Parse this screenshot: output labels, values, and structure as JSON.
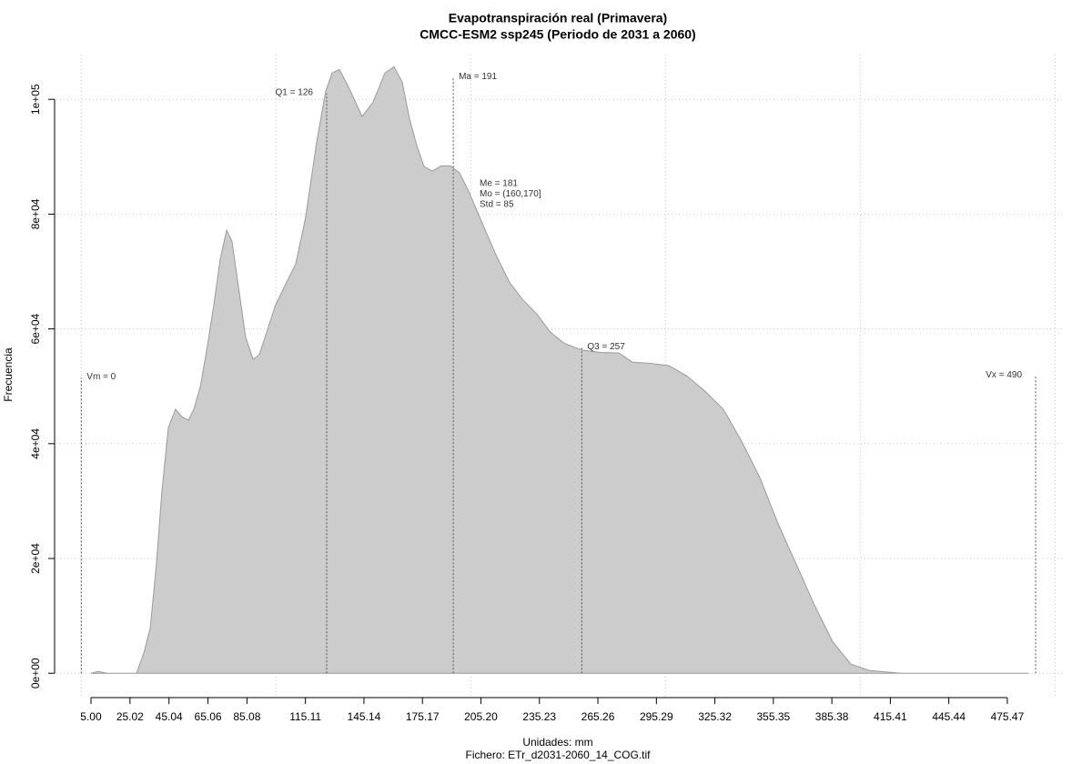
{
  "chart_data": {
    "type": "area",
    "title": "Evapotranspiración real (Primavera)",
    "subtitle": "CMCC-ESM2 ssp245 (Periodo de 2031 a 2060)",
    "x_label": "Unidades: mm",
    "caption": "Fichero: ETr_d2031-2060_14_COG.tif",
    "y_label": "Frecuencia",
    "x": [
      5,
      8.7,
      13.4,
      28.4,
      32.1,
      35.4,
      38.6,
      41.4,
      44.7,
      48.4,
      51.7,
      55,
      57.8,
      61.1,
      64.8,
      68.1,
      71.3,
      74.6,
      77.4,
      80.7,
      84.4,
      88.2,
      91.4,
      95.2,
      99.8,
      105.4,
      110.1,
      115.1,
      120.9,
      125.5,
      128.8,
      132.5,
      137.2,
      144.2,
      149.8,
      155.9,
      160.6,
      164.8,
      168.5,
      172.3,
      176,
      180.2,
      184.9,
      189.5,
      194.2,
      198.9,
      205.9,
      212.9,
      219.9,
      226.9,
      233.9,
      240.9,
      247.9,
      257.3,
      266.6,
      276,
      283,
      292.3,
      301.7,
      311,
      320.4,
      329.7,
      339.1,
      348.4,
      357.7,
      367.1,
      376.4,
      385.8,
      395.1,
      404.5,
      420.8,
      486.2
    ],
    "series": [
      {
        "color": "#cccccc",
        "values": [
          0,
          300,
          0,
          0,
          3500,
          7900,
          19000,
          31700,
          42800,
          46000,
          44700,
          44100,
          46000,
          49900,
          57100,
          64200,
          72100,
          77200,
          75300,
          67400,
          58600,
          54700,
          55500,
          59400,
          64200,
          68100,
          71300,
          79200,
          92700,
          101400,
          104600,
          105200,
          102200,
          97000,
          99500,
          104600,
          105700,
          103000,
          96700,
          91900,
          88300,
          87500,
          88400,
          88400,
          87200,
          84000,
          78400,
          72900,
          68100,
          65000,
          62600,
          59400,
          57500,
          56300,
          55900,
          55800,
          54200,
          54000,
          53600,
          51800,
          49100,
          46000,
          40400,
          34100,
          26100,
          19000,
          11900,
          5500,
          1600,
          500,
          0,
          0
        ]
      }
    ],
    "xlim": [
      -12.75,
      504
    ],
    "ylim": [
      -4400,
      107800
    ],
    "xticks": [
      {
        "value": 5,
        "label": "5.00"
      },
      25.02,
      45.04,
      65.06,
      85.08,
      115.11,
      145.14,
      175.17,
      {
        "value": 205.2,
        "label": "205.20"
      },
      235.23,
      265.26,
      295.29,
      325.32,
      355.35,
      385.38,
      415.41,
      445.44,
      475.47
    ],
    "yticks": [
      {
        "value": 0,
        "label": "0e+00"
      },
      {
        "value": 20000,
        "label": "2e+04"
      },
      {
        "value": 40000,
        "label": "4e+04"
      },
      {
        "value": 60000,
        "label": "6e+04"
      },
      {
        "value": 80000,
        "label": "8e+04"
      },
      {
        "value": 100000,
        "label": "1e+05"
      }
    ],
    "xgrid": [
      0,
      100,
      200,
      300,
      400,
      500
    ],
    "grid": true,
    "annotations": [
      {
        "text": "Vm = 0",
        "x": 0,
        "y": 51500,
        "side": "right"
      },
      {
        "text": "Q1 = 126",
        "x": 126,
        "y": 101000,
        "side": "left"
      },
      {
        "text": "Ma = 191",
        "x": 191,
        "y": 103800,
        "side": "right"
      },
      {
        "text": "Q3 = 257",
        "x": 257,
        "y": 56700,
        "side": "right"
      },
      {
        "text": "Vx = 490",
        "x": 490,
        "y": 51800,
        "side": "left"
      }
    ],
    "stats": [
      "Me = 181",
      "Mo = (160,170]",
      "Std = 85"
    ]
  }
}
